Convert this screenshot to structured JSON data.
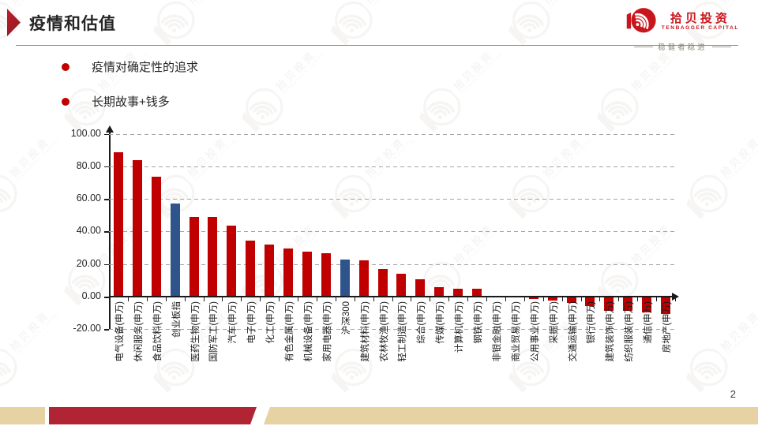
{
  "header": {
    "title": "疫情和估值"
  },
  "logo": {
    "name_cn": "拾贝投资",
    "name_en": "TENBAGGER CAPITAL",
    "slogan": "稳健者稳进"
  },
  "bullets": [
    "疫情对确定性的追求",
    "长期故事+钱多"
  ],
  "page_number": "2",
  "colors": {
    "bar_red": "#c00000",
    "bar_blue": "#2f548c",
    "accent_red": "#c00000",
    "title_text": "#262626",
    "gridline": "#a6a6a6",
    "footer_red": "#b12433",
    "footer_tan": "#e6d2a3",
    "logo_red": "#c8161e"
  },
  "chart_data": {
    "type": "bar",
    "title": "",
    "xlabel": "",
    "ylabel": "",
    "ylim": [
      -20,
      100
    ],
    "grid": "dashed-horizontal",
    "legend": "none",
    "yticks": [
      100,
      80,
      60,
      40,
      20,
      0,
      -20
    ],
    "ytick_labels": [
      "100.00",
      "80.00",
      "60.00",
      "40.00",
      "20.00",
      "0.00",
      "-20.00"
    ],
    "categories": [
      "电气设备(申万)",
      "休闲服务(申万)",
      "食品饮料(申万)",
      "创业板指",
      "医药生物(申万)",
      "国防军工(申万)",
      "汽车(申万)",
      "电子(申万)",
      "化工(申万)",
      "有色金属(申万)",
      "机械设备(申万)",
      "家用电器(申万)",
      "沪深300",
      "建筑材料(申万)",
      "农林牧渔(申万)",
      "轻工制造(申万)",
      "综合(申万)",
      "传媒(申万)",
      "计算机(申万)",
      "钢铁(申万)",
      "非银金融(申万)",
      "商业贸易(申万)",
      "公用事业(申万)",
      "采掘(申万)",
      "交通运输(申万)",
      "银行(申万)",
      "建筑装饰(申万)",
      "纺织服装(申万)",
      "通信(申万)",
      "房地产(申万)"
    ],
    "values": [
      88.3,
      83.5,
      73.2,
      56.8,
      48.4,
      48.3,
      43.0,
      34.0,
      31.5,
      29.0,
      27.2,
      26.1,
      22.3,
      21.8,
      16.3,
      13.4,
      10.3,
      5.5,
      4.5,
      4.3,
      0.0,
      0.0,
      -1.2,
      -2.0,
      -3.5,
      -5.5,
      -8.0,
      -8.0,
      -9.0,
      -10.2
    ],
    "highlight_indices": [
      3,
      12
    ],
    "highlight_note": "创业板指 and 沪深300 bars are blue; all industry bars are red"
  }
}
